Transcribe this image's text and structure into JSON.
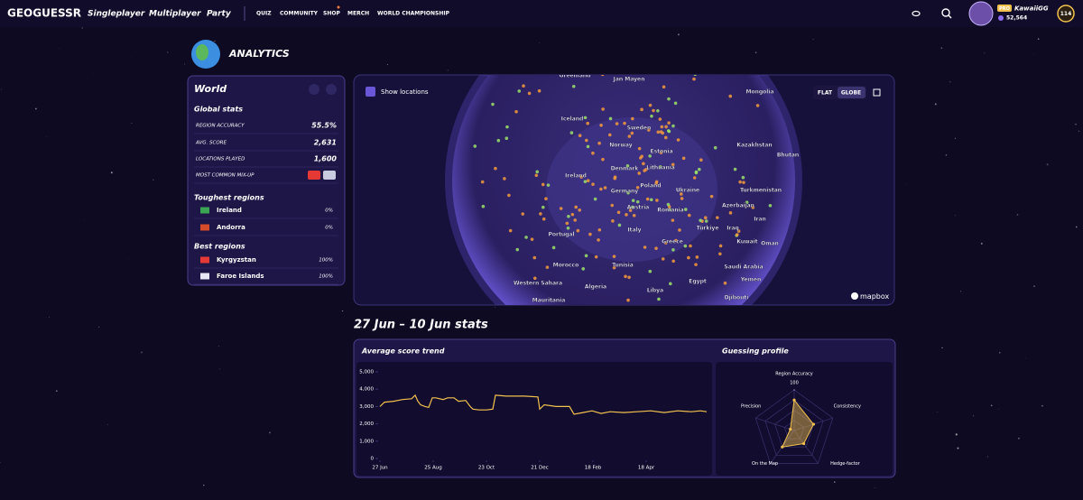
{
  "nav": {
    "logo": "GEOGUESSR",
    "main_links": [
      "Singleplayer",
      "Multiplayer",
      "Party"
    ],
    "sub_links": [
      "QUIZ",
      "COMMUNITY",
      "SHOP",
      "MERCH",
      "WORLD CHAMPIONSHIP"
    ],
    "user": {
      "badge": "PRO",
      "name": "KawaiiGG",
      "coins": "52,564",
      "level": "114"
    }
  },
  "page_title": "ANALYTICS",
  "panel": {
    "title": "World",
    "global_heading": "Global stats",
    "global_stats": [
      [
        "REGION ACCURACY",
        "55.5%"
      ],
      [
        "AVG. SCORE",
        "2,631"
      ],
      [
        "LOCATIONS PLAYED",
        "1,600"
      ],
      [
        "MOST COMMON MIX-UP",
        ""
      ]
    ],
    "toughest_heading": "Toughest regions",
    "toughest": [
      [
        "Ireland",
        "0%"
      ],
      [
        "Andorra",
        "0%"
      ]
    ],
    "best_heading": "Best regions",
    "best": [
      [
        "Kyrgyzstan",
        "100%"
      ],
      [
        "Faroe Islands",
        "100%"
      ]
    ]
  },
  "map": {
    "show_locations": "Show locations",
    "modes": [
      "FLAT",
      "GLOBE"
    ],
    "attribution": "mapbox",
    "labels": [
      "Greenland",
      "Jan Mayen",
      "Mongolia",
      "Iceland",
      "Sweden",
      "Norway",
      "Kazakhstan",
      "Estonia",
      "Bhutan",
      "Lithuania",
      "Denmark",
      "Ireland",
      "Poland",
      "Germany",
      "Ukraine",
      "Turkmenistan",
      "Azerbaijan",
      "Austria",
      "Romania",
      "Iran",
      "Türkiye",
      "Iraq",
      "Portugal",
      "Italy",
      "Greece",
      "Kuwait",
      "Oman",
      "Tunisia",
      "Morocco",
      "Saudi Arabia",
      "Yemen",
      "Egypt",
      "Western Sahara",
      "Algeria",
      "Libya",
      "Djibouti",
      "Mauritania"
    ]
  },
  "stats_heading": "27 Jun – 10 Jun stats",
  "score_trend": {
    "type": "line",
    "title": "Average score trend",
    "color": "#f2c14e",
    "x": [
      0,
      5,
      15,
      25,
      35,
      39,
      42,
      45,
      50,
      54,
      58,
      62,
      70,
      75,
      82,
      87,
      95,
      100,
      103,
      110,
      118,
      125,
      128,
      140,
      160,
      175,
      177,
      182,
      195,
      210,
      215,
      225,
      235,
      245,
      255,
      270,
      285,
      300,
      315,
      330,
      345,
      355,
      362
    ],
    "values": [
      3000,
      3250,
      3300,
      3400,
      3450,
      3650,
      3300,
      3100,
      3000,
      2950,
      3500,
      3500,
      3400,
      3500,
      3500,
      3300,
      3350,
      3000,
      2850,
      2800,
      2800,
      2850,
      3650,
      3600,
      3600,
      3550,
      2850,
      3100,
      3000,
      3000,
      2550,
      2650,
      2750,
      2600,
      2700,
      2650,
      2700,
      2750,
      2650,
      2750,
      2700,
      2750,
      2700
    ],
    "xlim": [
      0,
      362
    ],
    "xticks": [
      {
        "value": 0,
        "label": "27 Jun"
      },
      {
        "value": 59,
        "label": "25 Aug"
      },
      {
        "value": 118,
        "label": "23 Oct"
      },
      {
        "value": 177,
        "label": "21 Dec"
      },
      {
        "value": 236,
        "label": "18 Feb"
      },
      {
        "value": 295,
        "label": "18 Apr"
      }
    ],
    "ylim": [
      0,
      5000
    ],
    "yticks": [
      0,
      {
        "value": 1000,
        "label": "1,000"
      },
      {
        "value": 2000,
        "label": "2,000"
      },
      {
        "value": 3000,
        "label": "3,000"
      },
      {
        "value": 4000,
        "label": "4,000"
      },
      {
        "value": 5000,
        "label": "5,000"
      }
    ]
  },
  "guessing_profile": {
    "type": "radar",
    "title": "Guessing profile",
    "color": "#f2c14e",
    "axes": [
      "Region Accuracy",
      "Consistency",
      "Hedge-factor",
      "On the Map",
      "Precision"
    ],
    "values": [
      75,
      50,
      40,
      50,
      10
    ],
    "rlim": [
      0,
      100
    ],
    "rticks": [
      100
    ]
  }
}
